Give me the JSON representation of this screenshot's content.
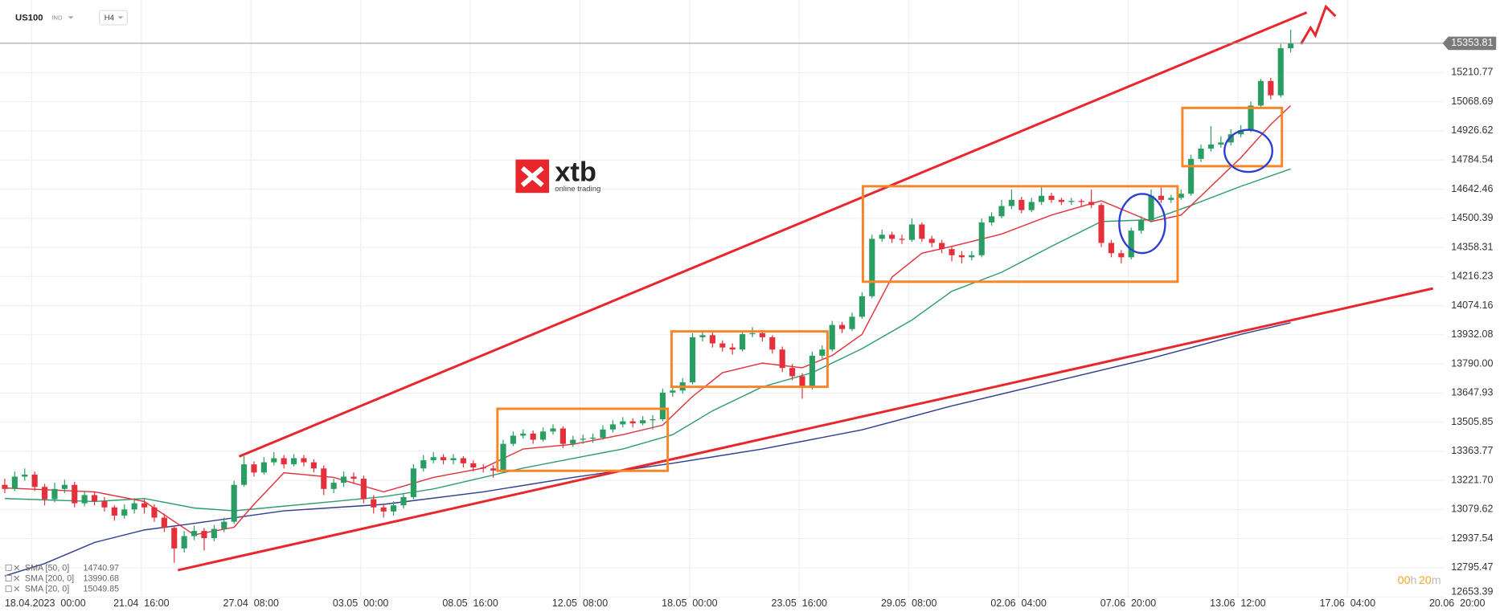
{
  "chart_data": {
    "type": "candlestick",
    "symbol": "US100",
    "market": "IND",
    "timeframe": "H4",
    "logo": {
      "brand": "xtb",
      "tagline": "online trading"
    },
    "up_color": "#2a9d62",
    "down_color": "#e3303a",
    "grid": true,
    "candles": [
      [
        13200,
        13230,
        13160,
        13180
      ],
      [
        13180,
        13265,
        13170,
        13240
      ],
      [
        13240,
        13280,
        13220,
        13250
      ],
      [
        13250,
        13265,
        13170,
        13190
      ],
      [
        13190,
        13205,
        13100,
        13130
      ],
      [
        13130,
        13210,
        13115,
        13180
      ],
      [
        13180,
        13225,
        13160,
        13200
      ],
      [
        13200,
        13215,
        13090,
        13110
      ],
      [
        13110,
        13170,
        13095,
        13150
      ],
      [
        13150,
        13165,
        13100,
        13120
      ],
      [
        13120,
        13140,
        13070,
        13090
      ],
      [
        13090,
        13100,
        13025,
        13050
      ],
      [
        13050,
        13105,
        13035,
        13080
      ],
      [
        13080,
        13135,
        13060,
        13110
      ],
      [
        13110,
        13130,
        13060,
        13090
      ],
      [
        13090,
        13105,
        13020,
        13040
      ],
      [
        13040,
        13060,
        12970,
        12990
      ],
      [
        12990,
        13000,
        12820,
        12890
      ],
      [
        12890,
        12975,
        12870,
        12950
      ],
      [
        12950,
        13000,
        12930,
        12975
      ],
      [
        12975,
        12990,
        12880,
        12940
      ],
      [
        12940,
        13005,
        12925,
        12985
      ],
      [
        12985,
        13040,
        12970,
        13020
      ],
      [
        13020,
        13220,
        13010,
        13200
      ],
      [
        13200,
        13340,
        13190,
        13300
      ],
      [
        13300,
        13315,
        13240,
        13260
      ],
      [
        13260,
        13335,
        13250,
        13310
      ],
      [
        13310,
        13360,
        13295,
        13330
      ],
      [
        13330,
        13345,
        13280,
        13300
      ],
      [
        13300,
        13350,
        13290,
        13330
      ],
      [
        13330,
        13345,
        13290,
        13310
      ],
      [
        13310,
        13325,
        13260,
        13280
      ],
      [
        13280,
        13295,
        13150,
        13180
      ],
      [
        13180,
        13230,
        13160,
        13210
      ],
      [
        13210,
        13265,
        13190,
        13240
      ],
      [
        13240,
        13260,
        13205,
        13230
      ],
      [
        13230,
        13245,
        13110,
        13130
      ],
      [
        13130,
        13150,
        13060,
        13090
      ],
      [
        13090,
        13110,
        13040,
        13070
      ],
      [
        13070,
        13120,
        13050,
        13100
      ],
      [
        13100,
        13160,
        13085,
        13140
      ],
      [
        13140,
        13300,
        13130,
        13280
      ],
      [
        13280,
        13345,
        13265,
        13320
      ],
      [
        13320,
        13360,
        13305,
        13335
      ],
      [
        13335,
        13350,
        13300,
        13320
      ],
      [
        13320,
        13350,
        13300,
        13330
      ],
      [
        13330,
        13340,
        13285,
        13305
      ],
      [
        13305,
        13320,
        13265,
        13285
      ],
      [
        13285,
        13300,
        13260,
        13280
      ],
      [
        13280,
        13295,
        13235,
        13270
      ],
      [
        13270,
        13420,
        13260,
        13400
      ],
      [
        13400,
        13460,
        13390,
        13440
      ],
      [
        13440,
        13470,
        13425,
        13450
      ],
      [
        13450,
        13465,
        13400,
        13420
      ],
      [
        13420,
        13480,
        13410,
        13460
      ],
      [
        13460,
        13495,
        13445,
        13475
      ],
      [
        13475,
        13485,
        13380,
        13400
      ],
      [
        13400,
        13440,
        13385,
        13420
      ],
      [
        13420,
        13445,
        13400,
        13425
      ],
      [
        13425,
        13450,
        13405,
        13430
      ],
      [
        13430,
        13490,
        13420,
        13470
      ],
      [
        13470,
        13515,
        13455,
        13495
      ],
      [
        13495,
        13530,
        13480,
        13510
      ],
      [
        13510,
        13525,
        13480,
        13500
      ],
      [
        13500,
        13535,
        13490,
        13515
      ],
      [
        13515,
        13540,
        13470,
        13520
      ],
      [
        13520,
        13670,
        13510,
        13650
      ],
      [
        13650,
        13680,
        13630,
        13660
      ],
      [
        13660,
        13720,
        13645,
        13700
      ],
      [
        13700,
        13940,
        13690,
        13920
      ],
      [
        13920,
        13955,
        13900,
        13930
      ],
      [
        13930,
        13945,
        13870,
        13890
      ],
      [
        13890,
        13905,
        13850,
        13870
      ],
      [
        13870,
        13890,
        13835,
        13860
      ],
      [
        13860,
        13950,
        13850,
        13935
      ],
      [
        13935,
        13970,
        13920,
        13940
      ],
      [
        13940,
        13955,
        13900,
        13920
      ],
      [
        13920,
        13930,
        13840,
        13860
      ],
      [
        13860,
        13875,
        13750,
        13770
      ],
      [
        13770,
        13790,
        13710,
        13730
      ],
      [
        13730,
        13745,
        13620,
        13680
      ],
      [
        13680,
        13850,
        13665,
        13830
      ],
      [
        13830,
        13880,
        13815,
        13860
      ],
      [
        13860,
        14000,
        13850,
        13980
      ],
      [
        13980,
        13995,
        13940,
        13960
      ],
      [
        13960,
        14040,
        13950,
        14020
      ],
      [
        14020,
        14140,
        14010,
        14120
      ],
      [
        14120,
        14420,
        14110,
        14400
      ],
      [
        14400,
        14445,
        14385,
        14420
      ],
      [
        14420,
        14435,
        14380,
        14400
      ],
      [
        14400,
        14420,
        14375,
        14395
      ],
      [
        14395,
        14500,
        14385,
        14470
      ],
      [
        14470,
        14480,
        14385,
        14400
      ],
      [
        14400,
        14415,
        14360,
        14380
      ],
      [
        14380,
        14395,
        14330,
        14350
      ],
      [
        14350,
        14365,
        14290,
        14320
      ],
      [
        14320,
        14340,
        14280,
        14310
      ],
      [
        14310,
        14340,
        14295,
        14320
      ],
      [
        14320,
        14500,
        14310,
        14480
      ],
      [
        14480,
        14530,
        14465,
        14510
      ],
      [
        14510,
        14590,
        14500,
        14560
      ],
      [
        14560,
        14640,
        14545,
        14590
      ],
      [
        14590,
        14605,
        14525,
        14540
      ],
      [
        14540,
        14600,
        14530,
        14580
      ],
      [
        14580,
        14660,
        14565,
        14610
      ],
      [
        14610,
        14625,
        14575,
        14590
      ],
      [
        14590,
        14600,
        14565,
        14580
      ],
      [
        14580,
        14600,
        14565,
        14585
      ],
      [
        14585,
        14595,
        14560,
        14580
      ],
      [
        14580,
        14640,
        14550,
        14565
      ],
      [
        14565,
        14575,
        14360,
        14380
      ],
      [
        14380,
        14395,
        14310,
        14330
      ],
      [
        14330,
        14345,
        14280,
        14310
      ],
      [
        14310,
        14455,
        14300,
        14440
      ],
      [
        14440,
        14510,
        14425,
        14490
      ],
      [
        14490,
        14640,
        14480,
        14610
      ],
      [
        14610,
        14650,
        14575,
        14590
      ],
      [
        14590,
        14615,
        14575,
        14600
      ],
      [
        14600,
        14640,
        14590,
        14620
      ],
      [
        14620,
        14810,
        14610,
        14790
      ],
      [
        14790,
        14860,
        14775,
        14840
      ],
      [
        14840,
        14950,
        14825,
        14860
      ],
      [
        14860,
        14900,
        14845,
        14870
      ],
      [
        14870,
        14935,
        14855,
        14910
      ],
      [
        14910,
        14955,
        14895,
        14930
      ],
      [
        14930,
        15070,
        14920,
        15050
      ],
      [
        15050,
        15180,
        15040,
        15170
      ],
      [
        15170,
        15185,
        15080,
        15100
      ],
      [
        15100,
        15350,
        15090,
        15330
      ],
      [
        15330,
        15420,
        15310,
        15354
      ]
    ],
    "series": [
      {
        "name": "SMA [50, 0]",
        "color": "#2e9d6e",
        "x": [
          0,
          9,
          14,
          19,
          23,
          28,
          33,
          38,
          43,
          48,
          52,
          57,
          62,
          67,
          71,
          76,
          81,
          86,
          91,
          95,
          100,
          105,
          110,
          115,
          119,
          124,
          129
        ],
        "values": [
          13133,
          13119,
          13133,
          13087,
          13073,
          13096,
          13119,
          13142,
          13180,
          13236,
          13282,
          13329,
          13375,
          13445,
          13561,
          13678,
          13747,
          13864,
          14004,
          14144,
          14237,
          14363,
          14484,
          14493,
          14563,
          14656,
          14740.97
        ]
      },
      {
        "name": "SMA [200, 0]",
        "color": "#2f3d8f",
        "x": [
          0,
          4,
          9,
          14,
          19,
          28,
          38,
          48,
          57,
          67,
          76,
          86,
          95,
          105,
          115,
          124,
          129
        ],
        "values": [
          12756,
          12816,
          12919,
          12980,
          13012,
          13073,
          13105,
          13166,
          13236,
          13305,
          13375,
          13468,
          13585,
          13701,
          13817,
          13934,
          13990.68
        ]
      },
      {
        "name": "SMA [20, 0]",
        "color": "#e3303a",
        "x": [
          0,
          9,
          14,
          19,
          23,
          25,
          28,
          33,
          38,
          43,
          48,
          52,
          57,
          62,
          66,
          69,
          72,
          76,
          80,
          83,
          86,
          89,
          92,
          95,
          100,
          105,
          110,
          115,
          118,
          121,
          124,
          127,
          129
        ],
        "values": [
          13185,
          13166,
          13119,
          12956,
          12993,
          13105,
          13259,
          13236,
          13166,
          13236,
          13282,
          13375,
          13398,
          13445,
          13491,
          13631,
          13747,
          13794,
          13771,
          13831,
          13934,
          14213,
          14330,
          14363,
          14423,
          14516,
          14586,
          14484,
          14516,
          14656,
          14796,
          14958,
          15049.85
        ]
      }
    ],
    "last_price": 15353.81,
    "xlim": [
      -0.48,
      144.43
    ],
    "xticks": [
      {
        "value": 2.7,
        "label": "18.04.2023  00:00"
      },
      {
        "value": 13.7,
        "label": "21.04  16:00"
      },
      {
        "value": 24.7,
        "label": "27.04  08:00"
      },
      {
        "value": 35.7,
        "label": "03.05  00:00"
      },
      {
        "value": 46.7,
        "label": "08.05  16:00"
      },
      {
        "value": 57.7,
        "label": "12.05  08:00"
      },
      {
        "value": 68.7,
        "label": "18.05  00:00"
      },
      {
        "value": 79.7,
        "label": "23.05  16:00"
      },
      {
        "value": 90.7,
        "label": "29.05  08:00"
      },
      {
        "value": 101.7,
        "label": "02.06  04:00"
      },
      {
        "value": 112.7,
        "label": "07.06  20:00"
      },
      {
        "value": 123.7,
        "label": "13.06  12:00"
      },
      {
        "value": 134.7,
        "label": "17.06  04:00"
      },
      {
        "value": 145.7,
        "label": "20.06  20:00"
      }
    ],
    "ylim": [
      12653.39,
      15565
    ],
    "yticks": [
      12653.39,
      12795.47,
      12937.54,
      13079.62,
      {
        "value": 13221.7,
        "label": "13221.70"
      },
      13363.77,
      13505.85,
      13647.93,
      {
        "value": 13790,
        "label": "13790.00"
      },
      13932.08,
      14074.16,
      14216.23,
      14358.31,
      14500.39,
      14642.46,
      14784.54,
      14926.62,
      15068.69,
      15210.77
    ],
    "timer": [
      "00",
      "h",
      "20",
      "m"
    ]
  }
}
